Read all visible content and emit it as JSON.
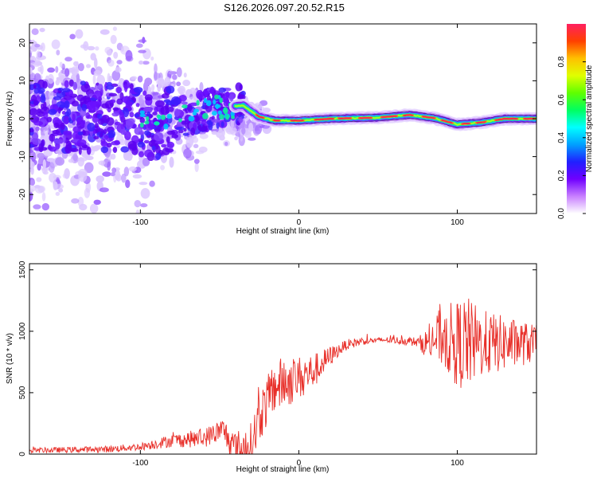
{
  "title": "S126.2026.097.20.52.R15",
  "chart_data": [
    {
      "type": "heatmap",
      "name": "spectrogram",
      "xlabel": "Height of straight line (km)",
      "ylabel": "Frequency (Hz)",
      "xlim": [
        -170,
        150
      ],
      "ylim": [
        -25,
        25
      ],
      "xticks": [
        -100,
        0,
        100
      ],
      "yticks": [
        -20,
        -10,
        0,
        10,
        20
      ],
      "description_ridge": [
        {
          "x": -110,
          "f": 0.5
        },
        {
          "x": -90,
          "f": -1.5
        },
        {
          "x": -70,
          "f": 1.0
        },
        {
          "x": -50,
          "f": 3.0
        },
        {
          "x": -35,
          "f": 3.5
        },
        {
          "x": -25,
          "f": 0.5
        },
        {
          "x": -15,
          "f": -0.5
        },
        {
          "x": 0,
          "f": -0.5
        },
        {
          "x": 20,
          "f": 0.0
        },
        {
          "x": 50,
          "f": 0.3
        },
        {
          "x": 70,
          "f": 1.0
        },
        {
          "x": 85,
          "f": 0.2
        },
        {
          "x": 100,
          "f": -1.5
        },
        {
          "x": 115,
          "f": -1.0
        },
        {
          "x": 130,
          "f": 0.0
        },
        {
          "x": 150,
          "f": 0.0
        }
      ],
      "colorbar": {
        "label": "Normalized spectral amplitude",
        "range": [
          0,
          1
        ],
        "ticks": [
          0.0,
          0.2,
          0.4,
          0.6,
          0.8
        ],
        "tick_labels": [
          "0.0",
          "0.2",
          "0.4",
          "0.6",
          "0.8"
        ],
        "colors": [
          "#ffffff",
          "#c880ff",
          "#7000ff",
          "#2020ff",
          "#00a0ff",
          "#00ffff",
          "#00ff60",
          "#60ff00",
          "#e0ff00",
          "#ffc000",
          "#ff4000",
          "#ff2060"
        ]
      }
    },
    {
      "type": "line",
      "name": "snr",
      "xlabel": "Height of straight line (km)",
      "ylabel": "SNR (10 * v/v)",
      "xlim": [
        -170,
        150
      ],
      "ylim": [
        0,
        1550
      ],
      "xticks": [
        -100,
        0,
        100
      ],
      "yticks": [
        0,
        500,
        1000,
        1500
      ],
      "color": "#e8302a",
      "envelope": [
        {
          "x": -170,
          "y": 30
        },
        {
          "x": -120,
          "y": 40
        },
        {
          "x": -100,
          "y": 60
        },
        {
          "x": -80,
          "y": 110
        },
        {
          "x": -60,
          "y": 130
        },
        {
          "x": -48,
          "y": 200
        },
        {
          "x": -40,
          "y": 40
        },
        {
          "x": -30,
          "y": 60
        },
        {
          "x": -25,
          "y": 300
        },
        {
          "x": -15,
          "y": 550
        },
        {
          "x": 0,
          "y": 620
        },
        {
          "x": 10,
          "y": 680
        },
        {
          "x": 20,
          "y": 800
        },
        {
          "x": 30,
          "y": 890
        },
        {
          "x": 40,
          "y": 920
        },
        {
          "x": 55,
          "y": 930
        },
        {
          "x": 70,
          "y": 920
        },
        {
          "x": 80,
          "y": 900
        },
        {
          "x": 90,
          "y": 960
        },
        {
          "x": 100,
          "y": 900
        },
        {
          "x": 120,
          "y": 900
        },
        {
          "x": 150,
          "y": 900
        }
      ],
      "noise_amplitude": [
        {
          "x": -170,
          "a": 20
        },
        {
          "x": -100,
          "a": 30
        },
        {
          "x": -50,
          "a": 90
        },
        {
          "x": -30,
          "a": 200
        },
        {
          "x": -10,
          "a": 220
        },
        {
          "x": 10,
          "a": 140
        },
        {
          "x": 25,
          "a": 50
        },
        {
          "x": 50,
          "a": 20
        },
        {
          "x": 75,
          "a": 40
        },
        {
          "x": 90,
          "a": 250
        },
        {
          "x": 105,
          "a": 400
        },
        {
          "x": 115,
          "a": 280
        },
        {
          "x": 150,
          "a": 150
        }
      ]
    }
  ]
}
